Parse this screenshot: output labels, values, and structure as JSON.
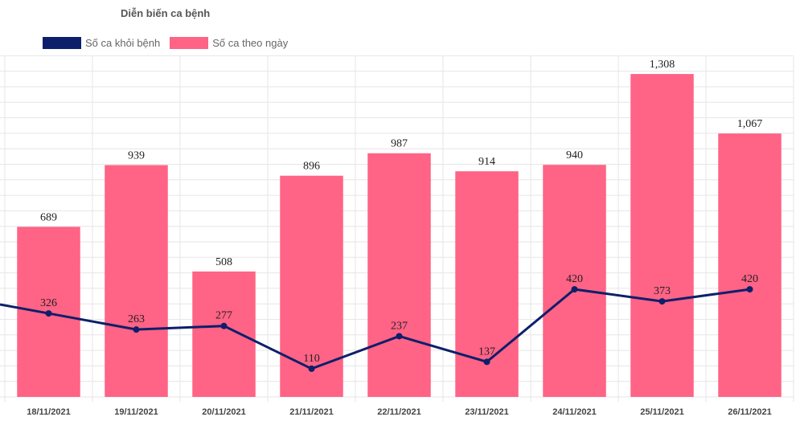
{
  "chart_data": {
    "type": "bar",
    "title": "Diễn biến ca bệnh",
    "categories": [
      "18/11/2021",
      "19/11/2021",
      "20/11/2021",
      "21/11/2021",
      "22/11/2021",
      "23/11/2021",
      "24/11/2021",
      "25/11/2021",
      "26/11/2021"
    ],
    "series": [
      {
        "name": "Số ca khỏi bệnh",
        "type": "line",
        "color": "#0d1f6b",
        "values": [
          326,
          263,
          277,
          110,
          237,
          137,
          420,
          373,
          420
        ],
        "labels": [
          "326",
          "263",
          "277",
          "110",
          "237",
          "137",
          "420",
          "373",
          "420"
        ]
      },
      {
        "name": "Số ca theo ngày",
        "type": "bar",
        "color": "#ff6385",
        "values": [
          689,
          939,
          508,
          896,
          987,
          914,
          940,
          1308,
          1067
        ],
        "labels": [
          "689",
          "939",
          "508",
          "896",
          "987",
          "914",
          "940",
          "1,308",
          "1,067"
        ]
      }
    ],
    "legend_position": "top-left",
    "grid": true
  }
}
